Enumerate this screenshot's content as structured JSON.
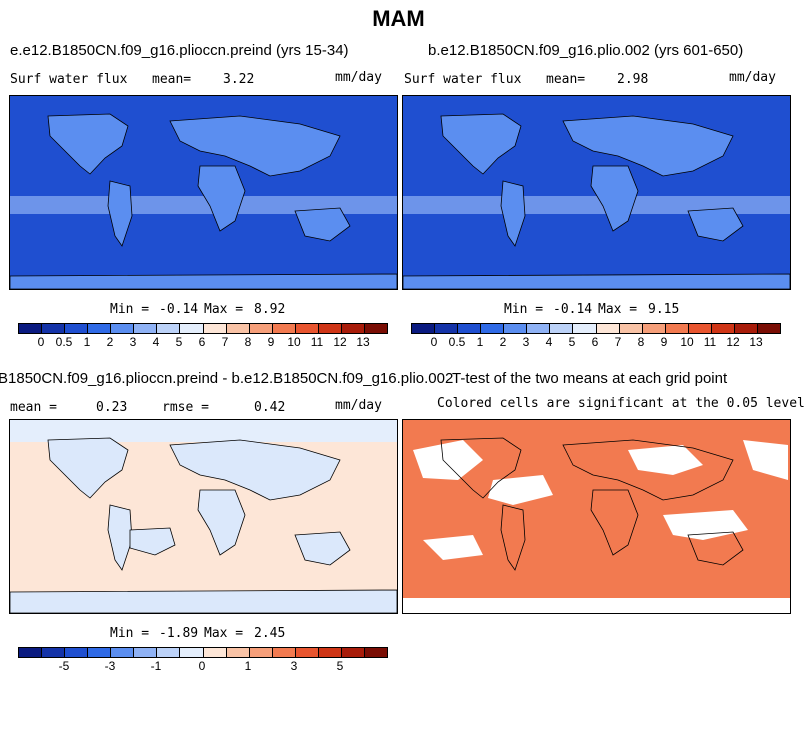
{
  "main_title": "MAM",
  "panels": [
    {
      "title": "e.e12.B1850CN.f09_g16.plioccn.preind (yrs 15-34)",
      "left_label": "Surf water flux",
      "mean_label": "mean=",
      "mean_value": "3.22",
      "units": "mm/day",
      "min_label": "Min =",
      "min_value": "-0.14",
      "max_label": "Max =",
      "max_value": "8.92"
    },
    {
      "title": "b.e12.B1850CN.f09_g16.plio.002 (yrs 601-650)",
      "left_label": "Surf water flux",
      "mean_label": "mean=",
      "mean_value": "2.98",
      "units": "mm/day",
      "min_label": "Min =",
      "min_value": "-0.14",
      "max_label": "Max =",
      "max_value": "9.15"
    },
    {
      "title": "B1850CN.f09_g16.plioccn.preind - b.e12.B1850CN.f09_g16.plio.002",
      "mean_label": "mean =",
      "mean_value": "0.23",
      "rmse_label": "rmse =",
      "rmse_value": "0.42",
      "units": "mm/day",
      "min_label": "Min =",
      "min_value": "-1.89",
      "max_label": "Max =",
      "max_value": "2.45"
    },
    {
      "title": "T-test of the two means at each grid point",
      "subtitle": "Colored cells are significant at the 0.05 level"
    }
  ],
  "colorbar_abs": {
    "colors": [
      "#0a1a80",
      "#1433a8",
      "#1f4fd0",
      "#2f6ae6",
      "#5b8ef0",
      "#8fb2f5",
      "#bcd2f8",
      "#e4eefc",
      "#fde6d7",
      "#f9c3a6",
      "#f69f7a",
      "#f27a50",
      "#e8552f",
      "#cf3516",
      "#a81c0a",
      "#7a0d04"
    ],
    "tick_labels": [
      "0",
      "0.5",
      "1",
      "2",
      "3",
      "4",
      "5",
      "6",
      "7",
      "8",
      "9",
      "10",
      "11",
      "12",
      "13"
    ]
  },
  "colorbar_diff": {
    "colors": [
      "#0a1a80",
      "#1433a8",
      "#1f4fd0",
      "#2f6ae6",
      "#5b8ef0",
      "#8fb2f5",
      "#bcd2f8",
      "#e4eefc",
      "#fde6d7",
      "#f9c3a6",
      "#f69f7a",
      "#f27a50",
      "#e8552f",
      "#cf3516",
      "#a81c0a",
      "#7a0d04"
    ],
    "tick_labels": [
      "-5",
      "-3",
      "-1",
      "0",
      "1",
      "3",
      "5"
    ]
  },
  "colors": {
    "ocean_abs": "#1f4fd0",
    "land_abs": "#5b8ef0",
    "ocean_diff": "#fde6d7",
    "land_diff": "#dbe8fb",
    "significant": "#f27a50"
  }
}
